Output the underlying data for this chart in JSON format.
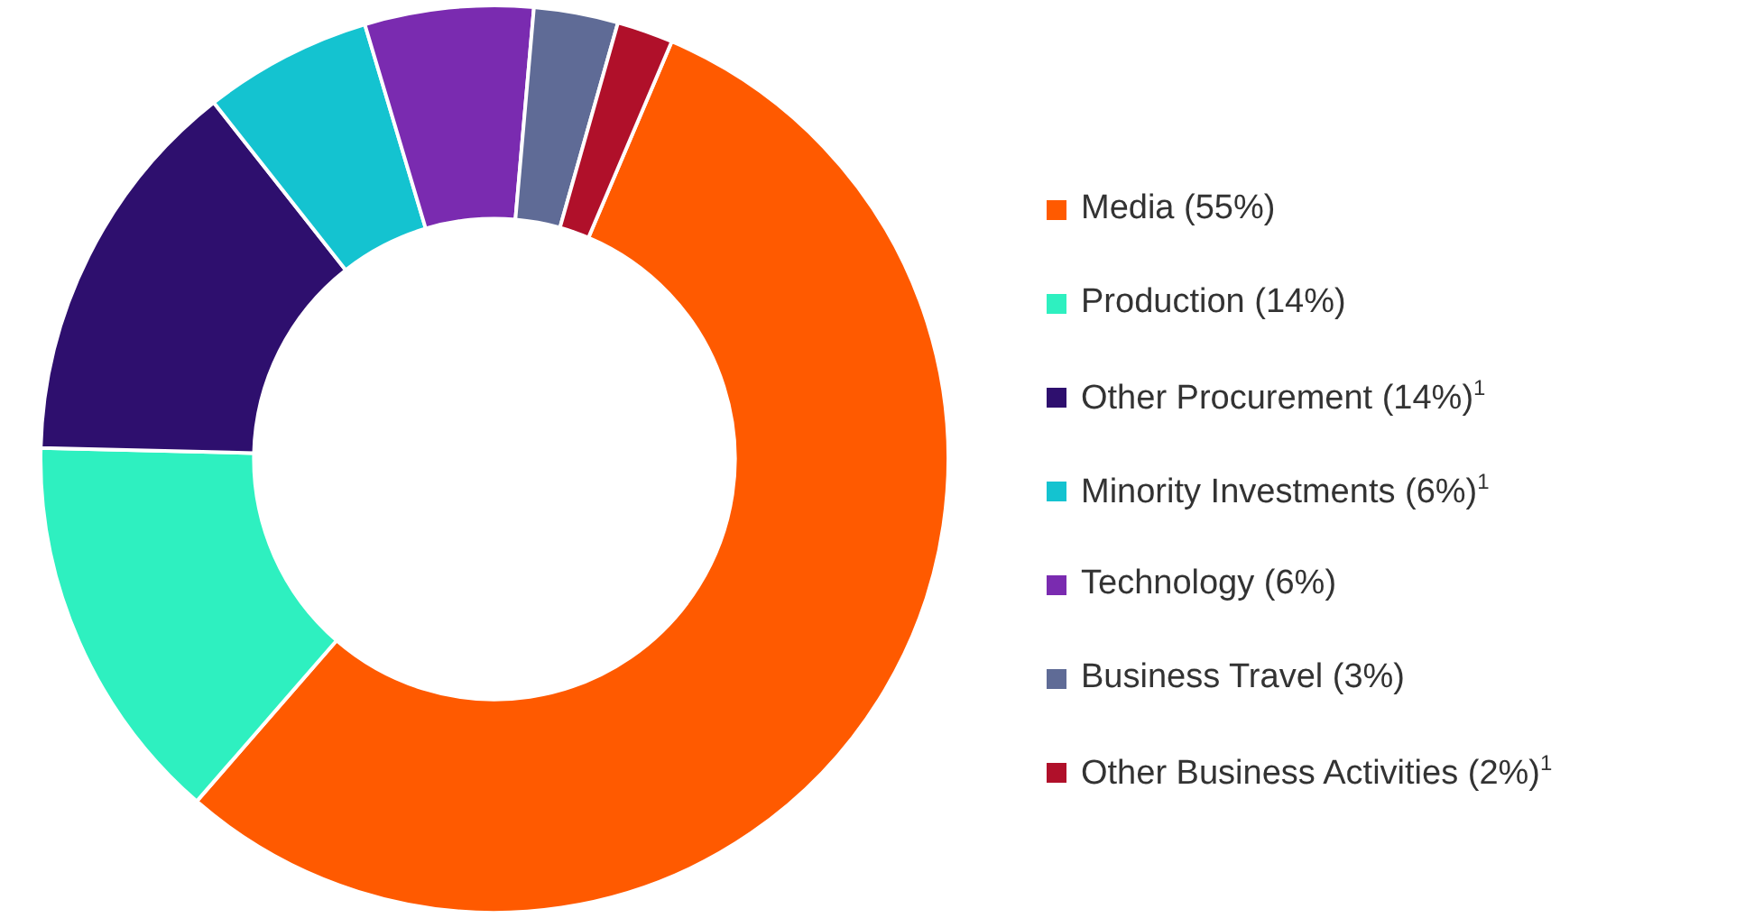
{
  "chart_data": {
    "type": "donut",
    "categories": [
      "Media (55%)",
      "Production (14%)",
      "Other Procurement (14%)$^{1}$",
      "Minority Investments (6%)$^{1}$",
      "Technology (6%)",
      "Business Travel (3%)",
      "Other Business Activities (2%)$^{1}$"
    ],
    "values": [
      55,
      14,
      14,
      6,
      6,
      3,
      2
    ],
    "colors": [
      "#ff5a00",
      "#2ef0c0",
      "#2e0f6e",
      "#14c3d0",
      "#7a2bb0",
      "#5f6b96",
      "#b0102a"
    ],
    "legend": "right"
  }
}
